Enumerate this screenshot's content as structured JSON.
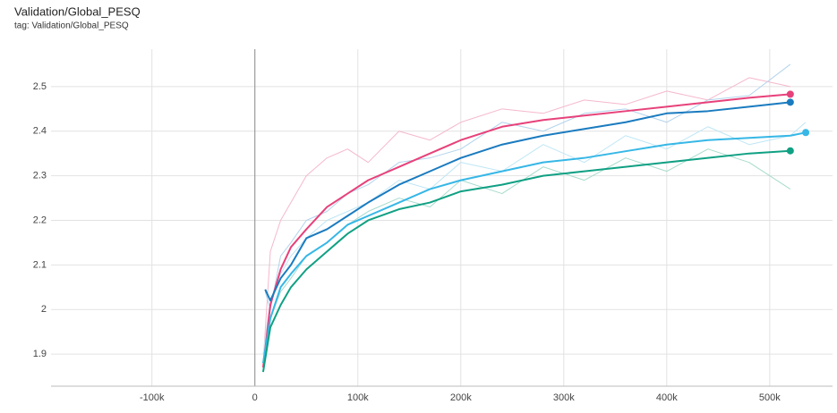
{
  "chart_data": {
    "type": "line",
    "title": "Validation/Global_PESQ",
    "subtitle": "tag: Validation/Global_PESQ",
    "xlim": [
      -198000,
      561000
    ],
    "xticks": [
      {
        "value": -100000,
        "label": "-100k"
      },
      0,
      {
        "value": 100000,
        "label": "100k"
      },
      {
        "value": 200000,
        "label": "200k"
      },
      {
        "value": 300000,
        "label": "300k"
      },
      {
        "value": 400000,
        "label": "400k"
      },
      {
        "value": 500000,
        "label": "500k"
      }
    ],
    "ylim": [
      1.828,
      2.584
    ],
    "yticks": [
      1.9,
      2,
      2.1,
      2.2,
      2.3,
      2.4,
      2.5
    ],
    "grid": true,
    "series": [
      {
        "color": "#f5b8cc",
        "line_width": 1,
        "x": [
          8000,
          15000,
          25000,
          35000,
          50000,
          70000,
          90000,
          110000,
          140000,
          170000,
          200000,
          240000,
          280000,
          320000,
          360000,
          400000,
          440000,
          480000,
          520000
        ],
        "values": [
          1.88,
          2.13,
          2.2,
          2.24,
          2.3,
          2.34,
          2.36,
          2.33,
          2.4,
          2.38,
          2.42,
          2.45,
          2.44,
          2.47,
          2.46,
          2.49,
          2.47,
          2.52,
          2.5
        ]
      },
      {
        "color": "#b3d3ec",
        "line_width": 1,
        "x": [
          10000,
          15000,
          25000,
          35000,
          50000,
          70000,
          90000,
          110000,
          140000,
          170000,
          200000,
          240000,
          280000,
          320000,
          360000,
          400000,
          440000,
          480000,
          520000
        ],
        "values": [
          2.04,
          2.0,
          2.12,
          2.15,
          2.2,
          2.22,
          2.26,
          2.28,
          2.33,
          2.34,
          2.36,
          2.42,
          2.4,
          2.44,
          2.45,
          2.42,
          2.47,
          2.48,
          2.55
        ]
      },
      {
        "color": "#bfe6f5",
        "line_width": 1,
        "x": [
          8000,
          15000,
          25000,
          35000,
          50000,
          70000,
          90000,
          110000,
          140000,
          170000,
          200000,
          240000,
          280000,
          320000,
          360000,
          400000,
          440000,
          480000,
          520000,
          535000
        ],
        "values": [
          1.9,
          2.02,
          2.08,
          2.12,
          2.16,
          2.2,
          2.22,
          2.24,
          2.29,
          2.27,
          2.33,
          2.31,
          2.37,
          2.33,
          2.39,
          2.36,
          2.41,
          2.37,
          2.39,
          2.42
        ]
      },
      {
        "color": "#a8dbcd",
        "line_width": 1,
        "x": [
          8000,
          15000,
          25000,
          35000,
          50000,
          70000,
          90000,
          110000,
          140000,
          170000,
          200000,
          240000,
          280000,
          320000,
          360000,
          400000,
          440000,
          480000,
          520000
        ],
        "values": [
          1.87,
          1.98,
          2.04,
          2.07,
          2.12,
          2.15,
          2.19,
          2.22,
          2.25,
          2.23,
          2.29,
          2.26,
          2.32,
          2.29,
          2.34,
          2.31,
          2.36,
          2.33,
          2.27
        ]
      },
      {
        "color": "#e7417a",
        "line_width": 2,
        "end_marker": true,
        "x": [
          8000,
          15000,
          25000,
          35000,
          50000,
          70000,
          90000,
          110000,
          140000,
          170000,
          200000,
          240000,
          280000,
          320000,
          360000,
          400000,
          440000,
          480000,
          520000
        ],
        "values": [
          1.87,
          2.01,
          2.09,
          2.14,
          2.18,
          2.23,
          2.26,
          2.29,
          2.32,
          2.35,
          2.38,
          2.41,
          2.425,
          2.435,
          2.445,
          2.455,
          2.465,
          2.475,
          2.483
        ]
      },
      {
        "color": "#1a7bbf",
        "line_width": 2,
        "end_marker": true,
        "x": [
          10000,
          15000,
          25000,
          35000,
          50000,
          70000,
          90000,
          110000,
          140000,
          170000,
          200000,
          240000,
          280000,
          320000,
          360000,
          400000,
          440000,
          480000,
          520000
        ],
        "values": [
          2.045,
          2.02,
          2.07,
          2.1,
          2.16,
          2.18,
          2.21,
          2.24,
          2.28,
          2.31,
          2.34,
          2.37,
          2.39,
          2.405,
          2.42,
          2.44,
          2.445,
          2.455,
          2.465
        ]
      },
      {
        "color": "#36b7e6",
        "line_width": 2,
        "end_marker": true,
        "x": [
          8000,
          15000,
          25000,
          35000,
          50000,
          70000,
          90000,
          110000,
          140000,
          170000,
          200000,
          240000,
          280000,
          320000,
          360000,
          400000,
          440000,
          480000,
          520000,
          535000
        ],
        "values": [
          1.88,
          1.98,
          2.05,
          2.08,
          2.12,
          2.15,
          2.19,
          2.21,
          2.24,
          2.27,
          2.29,
          2.31,
          2.33,
          2.34,
          2.355,
          2.37,
          2.38,
          2.385,
          2.39,
          2.397
        ]
      },
      {
        "color": "#10a083",
        "line_width": 2,
        "end_marker": true,
        "x": [
          8000,
          15000,
          25000,
          35000,
          50000,
          70000,
          90000,
          110000,
          140000,
          170000,
          200000,
          240000,
          280000,
          320000,
          360000,
          400000,
          440000,
          480000,
          520000
        ],
        "values": [
          1.86,
          1.96,
          2.01,
          2.05,
          2.09,
          2.13,
          2.17,
          2.2,
          2.225,
          2.24,
          2.265,
          2.28,
          2.3,
          2.31,
          2.32,
          2.33,
          2.34,
          2.35,
          2.356
        ]
      }
    ]
  }
}
